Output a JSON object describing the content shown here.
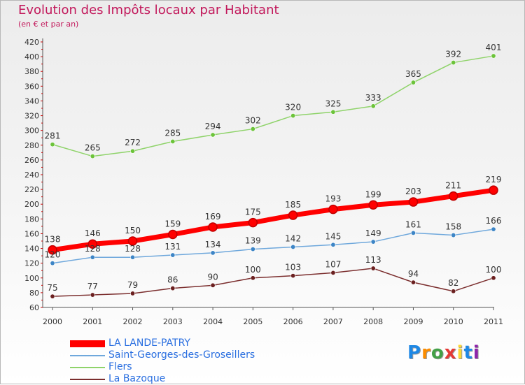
{
  "header": {
    "title": "Evolution des Impôts locaux par Habitant",
    "subtitle": "(en € et par an)"
  },
  "logo": {
    "text": "Proxiti"
  },
  "chart_data": {
    "type": "line",
    "title": "Evolution des Impôts locaux par Habitant",
    "subtitle": "(en € et par an)",
    "x": [
      "2000",
      "2001",
      "2002",
      "2003",
      "2004",
      "2005",
      "2006",
      "2007",
      "2008",
      "2009",
      "2010",
      "2011"
    ],
    "ylim": [
      60,
      420
    ],
    "yticks": [
      60,
      80,
      100,
      120,
      140,
      160,
      180,
      200,
      220,
      240,
      260,
      280,
      300,
      320,
      340,
      360,
      380,
      400,
      420
    ],
    "grid": false,
    "legend_position": "bottom-left",
    "series": [
      {
        "name": "Flers",
        "color": "#8fd36a",
        "marker": "#6cc33a",
        "values": [
          281,
          265,
          272,
          285,
          294,
          302,
          320,
          325,
          333,
          365,
          392,
          401
        ]
      },
      {
        "name": "LA LANDE-PATRY",
        "color": "#ff0000",
        "marker": "#ff0000",
        "values": [
          138,
          146,
          150,
          159,
          169,
          175,
          185,
          193,
          199,
          203,
          211,
          219
        ]
      },
      {
        "name": "Saint-Georges-des-Groseillers",
        "color": "#6fa8dc",
        "marker": "#3d85c6",
        "values": [
          120,
          128,
          128,
          131,
          134,
          139,
          142,
          145,
          149,
          161,
          158,
          166
        ]
      },
      {
        "name": "La Bazoque",
        "color": "#7b2e2e",
        "marker": "#6b2020",
        "values": [
          75,
          77,
          79,
          86,
          90,
          100,
          103,
          107,
          113,
          94,
          82,
          100
        ]
      }
    ],
    "legend": [
      "LA LANDE-PATRY",
      "Saint-Georges-des-Groseillers",
      "Flers",
      "La Bazoque"
    ]
  }
}
